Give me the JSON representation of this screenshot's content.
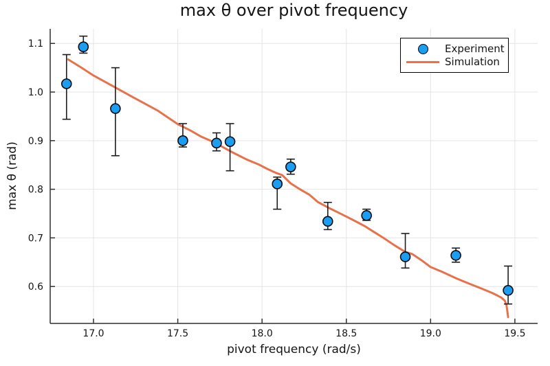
{
  "colors": {
    "experiment": "#1B9DF2",
    "simulation": "#E8714A",
    "error_bar": "#1C1C1C",
    "grid": "#E4E4E4",
    "axis": "#2F2F2F",
    "text": "#141414",
    "legend_border": "#000000",
    "background": "#FFFFFF"
  },
  "chart_data": {
    "type": "scatter",
    "title": "max θ over pivot frequency",
    "xlabel": "pivot frequency (rad/s)",
    "ylabel": "max θ (rad)",
    "xlim": [
      16.743,
      19.635
    ],
    "ylim": [
      0.524,
      1.13
    ],
    "grid": true,
    "xticks": {
      "values": [
        17.0,
        17.5,
        18.0,
        18.5,
        19.0,
        19.5
      ],
      "labels": [
        "17.0",
        "17.5",
        "18.0",
        "18.5",
        "19.0",
        "19.5"
      ]
    },
    "yticks": {
      "values": [
        0.6,
        0.7,
        0.8,
        0.9,
        1.0,
        1.1
      ],
      "labels": [
        "0.6",
        "0.7",
        "0.8",
        "0.9",
        "1.0",
        "1.1"
      ]
    },
    "legend": {
      "position": "top-right",
      "entries": [
        {
          "label": "Experiment",
          "type": "marker",
          "color": "#1B9DF2"
        },
        {
          "label": "Simulation",
          "type": "line",
          "color": "#E8714A"
        }
      ]
    },
    "series": [
      {
        "name": "Experiment",
        "type": "scatter",
        "marker": "circle",
        "color": "#1B9DF2",
        "points": [
          {
            "x": 16.84,
            "y": 1.017,
            "err_up": 0.06,
            "err_down": 0.073
          },
          {
            "x": 16.94,
            "y": 1.093,
            "err_up": 0.022,
            "err_down": 0.013
          },
          {
            "x": 17.13,
            "y": 0.966,
            "err_up": 0.084,
            "err_down": 0.097
          },
          {
            "x": 17.53,
            "y": 0.9,
            "err_up": 0.035,
            "err_down": 0.013
          },
          {
            "x": 17.73,
            "y": 0.895,
            "err_up": 0.021,
            "err_down": 0.016
          },
          {
            "x": 17.81,
            "y": 0.898,
            "err_up": 0.037,
            "err_down": 0.06
          },
          {
            "x": 18.09,
            "y": 0.811,
            "err_up": 0.014,
            "err_down": 0.052
          },
          {
            "x": 18.17,
            "y": 0.846,
            "err_up": 0.016,
            "err_down": 0.015
          },
          {
            "x": 18.39,
            "y": 0.734,
            "err_up": 0.039,
            "err_down": 0.017
          },
          {
            "x": 18.62,
            "y": 0.746,
            "err_up": 0.013,
            "err_down": 0.01
          },
          {
            "x": 18.85,
            "y": 0.661,
            "err_up": 0.048,
            "err_down": 0.023
          },
          {
            "x": 19.15,
            "y": 0.664,
            "err_up": 0.015,
            "err_down": 0.014
          },
          {
            "x": 19.46,
            "y": 0.592,
            "err_up": 0.05,
            "err_down": 0.028
          }
        ]
      },
      {
        "name": "Simulation",
        "type": "line",
        "color": "#E8714A",
        "points": [
          [
            16.85,
            1.067
          ],
          [
            16.92,
            1.052
          ],
          [
            17.0,
            1.034
          ],
          [
            17.1,
            1.015
          ],
          [
            17.22,
            0.992
          ],
          [
            17.3,
            0.977
          ],
          [
            17.38,
            0.962
          ],
          [
            17.44,
            0.948
          ],
          [
            17.5,
            0.934
          ],
          [
            17.58,
            0.92
          ],
          [
            17.64,
            0.908
          ],
          [
            17.7,
            0.899
          ],
          [
            17.75,
            0.89
          ],
          [
            17.83,
            0.875
          ],
          [
            17.91,
            0.861
          ],
          [
            17.98,
            0.851
          ],
          [
            18.03,
            0.842
          ],
          [
            18.08,
            0.834
          ],
          [
            18.12,
            0.829
          ],
          [
            18.17,
            0.812
          ],
          [
            18.22,
            0.801
          ],
          [
            18.28,
            0.789
          ],
          [
            18.33,
            0.774
          ],
          [
            18.4,
            0.761
          ],
          [
            18.47,
            0.749
          ],
          [
            18.55,
            0.735
          ],
          [
            18.61,
            0.724
          ],
          [
            18.66,
            0.713
          ],
          [
            18.72,
            0.7
          ],
          [
            18.78,
            0.686
          ],
          [
            18.85,
            0.671
          ],
          [
            18.89,
            0.667
          ],
          [
            18.95,
            0.653
          ],
          [
            19.0,
            0.64
          ],
          [
            19.07,
            0.63
          ],
          [
            19.15,
            0.617
          ],
          [
            19.22,
            0.607
          ],
          [
            19.3,
            0.596
          ],
          [
            19.37,
            0.586
          ],
          [
            19.42,
            0.577
          ],
          [
            19.44,
            0.571
          ],
          [
            19.45,
            0.562
          ],
          [
            19.455,
            0.55
          ],
          [
            19.46,
            0.537
          ]
        ]
      }
    ]
  }
}
